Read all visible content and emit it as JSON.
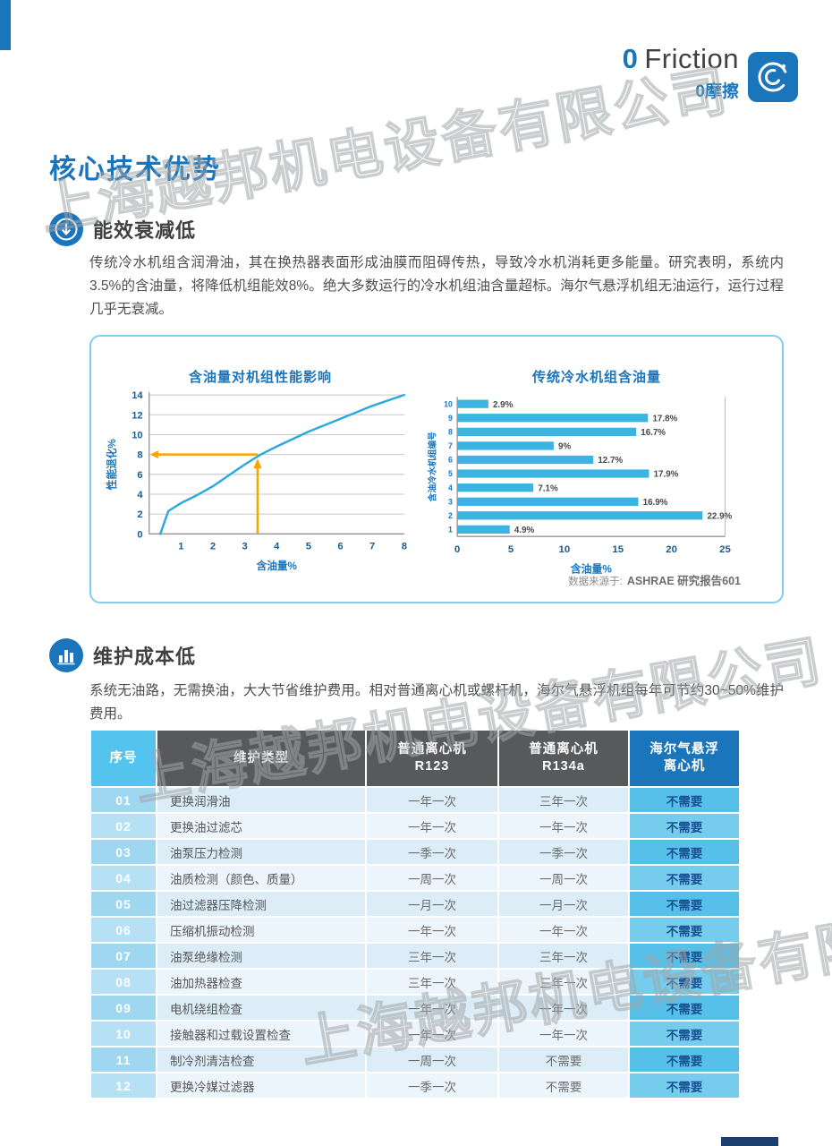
{
  "page": {
    "watermark": "上海越邦机电设备有限公司",
    "accent_color": "#1b75bb",
    "footer_bar_color": "#1d3f70"
  },
  "header": {
    "feature_number": "0",
    "feature_word": "Friction",
    "feature_cn": "0摩擦"
  },
  "main_title": "核心技术优势",
  "sections": [
    {
      "title": "能效衰减低",
      "body": "传统冷水机组含润滑油，其在换热器表面形成油膜而阻碍传热，导致冷水机消耗更多能量。研究表明，系统内3.5%的含油量，将降低机组能效8%。绝大多数运行的冷水机组油含量超标。海尔气悬浮机组无油运行，运行过程几乎无衰减。"
    },
    {
      "title": "维护成本低",
      "body": "系统无油路，无需换油，大大节省维护费用。相对普通离心机或螺杆机，海尔气悬浮机组每年可节约30~50%维护费用。"
    }
  ],
  "chart_data": [
    {
      "type": "line",
      "title": "含油量对机组性能影响",
      "xlabel": "含油量%",
      "ylabel": "性能退化%",
      "xlim": [
        0,
        8
      ],
      "ylim": [
        0,
        14
      ],
      "x_ticks": [
        1,
        2,
        3,
        4,
        5,
        6,
        7,
        8
      ],
      "y_ticks": [
        0,
        2,
        4,
        6,
        8,
        10,
        12,
        14
      ],
      "grid": "horizontal",
      "line_color": "#2aa9da",
      "points": [
        [
          0.35,
          0
        ],
        [
          0.6,
          2.3
        ],
        [
          1,
          3.1
        ],
        [
          1.5,
          3.9
        ],
        [
          2,
          4.8
        ],
        [
          2.5,
          5.9
        ],
        [
          3,
          7.0
        ],
        [
          3.5,
          8.0
        ],
        [
          4,
          8.8
        ],
        [
          5,
          10.3
        ],
        [
          6,
          11.6
        ],
        [
          7,
          12.9
        ],
        [
          8,
          14
        ]
      ],
      "annotation": {
        "x": 3.4,
        "y": 8,
        "color": "#f7a600"
      }
    },
    {
      "type": "bar",
      "title": "传统冷水机组含油量",
      "xlabel": "含油量%",
      "ylabel": "含油冷水机组编号",
      "xlim": [
        0,
        25
      ],
      "x_ticks": [
        0,
        5,
        10,
        15,
        20,
        25
      ],
      "bar_color": "#3cb4e1",
      "categories": [
        1,
        2,
        3,
        4,
        5,
        6,
        7,
        8,
        9,
        10
      ],
      "values": [
        4.9,
        22.9,
        16.9,
        7.1,
        17.9,
        12.7,
        9,
        16.7,
        17.8,
        2.9
      ],
      "labels": [
        "4.9%",
        "22.9%",
        "16.9%",
        "7.1%",
        "17.9%",
        "12.7%",
        "9%",
        "16.7%",
        "17.8%",
        "2.9%"
      ]
    }
  ],
  "chart_source": {
    "prefix": "数据来源于:",
    "name": "ASHRAE 研究报告601"
  },
  "table": {
    "headers": {
      "seq": "序号",
      "type": "维护类型",
      "r123": {
        "line1": "普通离心机",
        "line2": "R123"
      },
      "r134a": {
        "line1": "普通离心机",
        "line2": "R134a"
      },
      "haier": {
        "line1": "海尔气悬浮",
        "line2": "离心机"
      }
    },
    "rows": [
      [
        "01",
        "更换润滑油",
        "一年一次",
        "三年一次",
        "不需要"
      ],
      [
        "02",
        "更换油过滤芯",
        "一年一次",
        "一年一次",
        "不需要"
      ],
      [
        "03",
        "油泵压力检测",
        "一季一次",
        "一季一次",
        "不需要"
      ],
      [
        "04",
        "油质检测（颜色、质量）",
        "一周一次",
        "一周一次",
        "不需要"
      ],
      [
        "05",
        "油过滤器压降检测",
        "一月一次",
        "一月一次",
        "不需要"
      ],
      [
        "06",
        "压缩机振动检测",
        "一年一次",
        "一年一次",
        "不需要"
      ],
      [
        "07",
        "油泵绝缘检测",
        "三年一次",
        "三年一次",
        "不需要"
      ],
      [
        "08",
        "油加热器检查",
        "三年一次",
        "三年一次",
        "不需要"
      ],
      [
        "09",
        "电机绕组检查",
        "一年一次",
        "一年一次",
        "不需要"
      ],
      [
        "10",
        "接触器和过载设置检查",
        "一年一次",
        "一年一次",
        "不需要"
      ],
      [
        "11",
        "制冷剂清洁检查",
        "一周一次",
        "不需要",
        "不需要"
      ],
      [
        "12",
        "更换冷媒过滤器",
        "一季一次",
        "不需要",
        "不需要"
      ]
    ]
  }
}
